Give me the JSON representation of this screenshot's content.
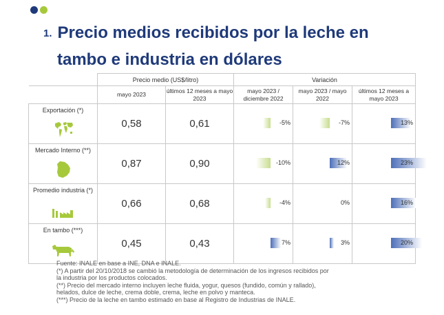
{
  "colors": {
    "dot1": "#1f3a7a",
    "dot2": "#a6c93c",
    "title": "#1f3a7a",
    "icon": "#a6c93c"
  },
  "title": {
    "number": "1.",
    "line1": "Precio medios recibidos por la leche en",
    "line2": "tambo e industria en dólares"
  },
  "table": {
    "group_headers": {
      "price": "Precio medio (US$/litro)",
      "variation": "Variación"
    },
    "col_headers": [
      "mayo 2023",
      "últimos 12 meses a mayo 2023",
      "mayo 2023 / diciembre 2022",
      "mayo 2023 / mayo 2022",
      "últimos 12 meses a mayo 2023"
    ],
    "rows": [
      {
        "label": "Exportación (*)",
        "icon": "world-map-icon",
        "price_may": "0,58",
        "price_12m": "0,61",
        "variations": [
          {
            "text": "-5%",
            "value": -5
          },
          {
            "text": "-7%",
            "value": -7
          },
          {
            "text": "13%",
            "value": 13
          }
        ]
      },
      {
        "label": "Mercado Interno (**)",
        "icon": "uruguay-map-icon",
        "price_may": "0,87",
        "price_12m": "0,90",
        "variations": [
          {
            "text": "-10%",
            "value": -10
          },
          {
            "text": "12%",
            "value": 12
          },
          {
            "text": "23%",
            "value": 23
          }
        ]
      },
      {
        "label": "Promedio industria (*)",
        "icon": "factory-icon",
        "price_may": "0,66",
        "price_12m": "0,68",
        "variations": [
          {
            "text": "-4%",
            "value": -4
          },
          {
            "text": "0%",
            "value": 0
          },
          {
            "text": "16%",
            "value": 16
          }
        ]
      },
      {
        "label": "En tambo (***)",
        "icon": "cow-icon",
        "price_may": "0,45",
        "price_12m": "0,43",
        "variations": [
          {
            "text": "7%",
            "value": 7
          },
          {
            "text": "3%",
            "value": 3
          },
          {
            "text": "20%",
            "value": 20
          }
        ]
      }
    ]
  },
  "notes": [
    "Fuente: INALE en base a INE, DNA e INALE.",
    "(*) A partir del 20/10/2018 se cambió la metodología de determinación de los ingresos recibidos por",
    "la industria por los productos colocados.",
    "(**) Precio del mercado interno incluyen leche fluida, yogur, quesos (fundido, común y rallado),",
    "helados, dulce de leche, crema doble, crema, leche en polvo y manteca.",
    "(***) Precio de la leche en tambo estimado en base al Registro de Industrias de INALE."
  ]
}
